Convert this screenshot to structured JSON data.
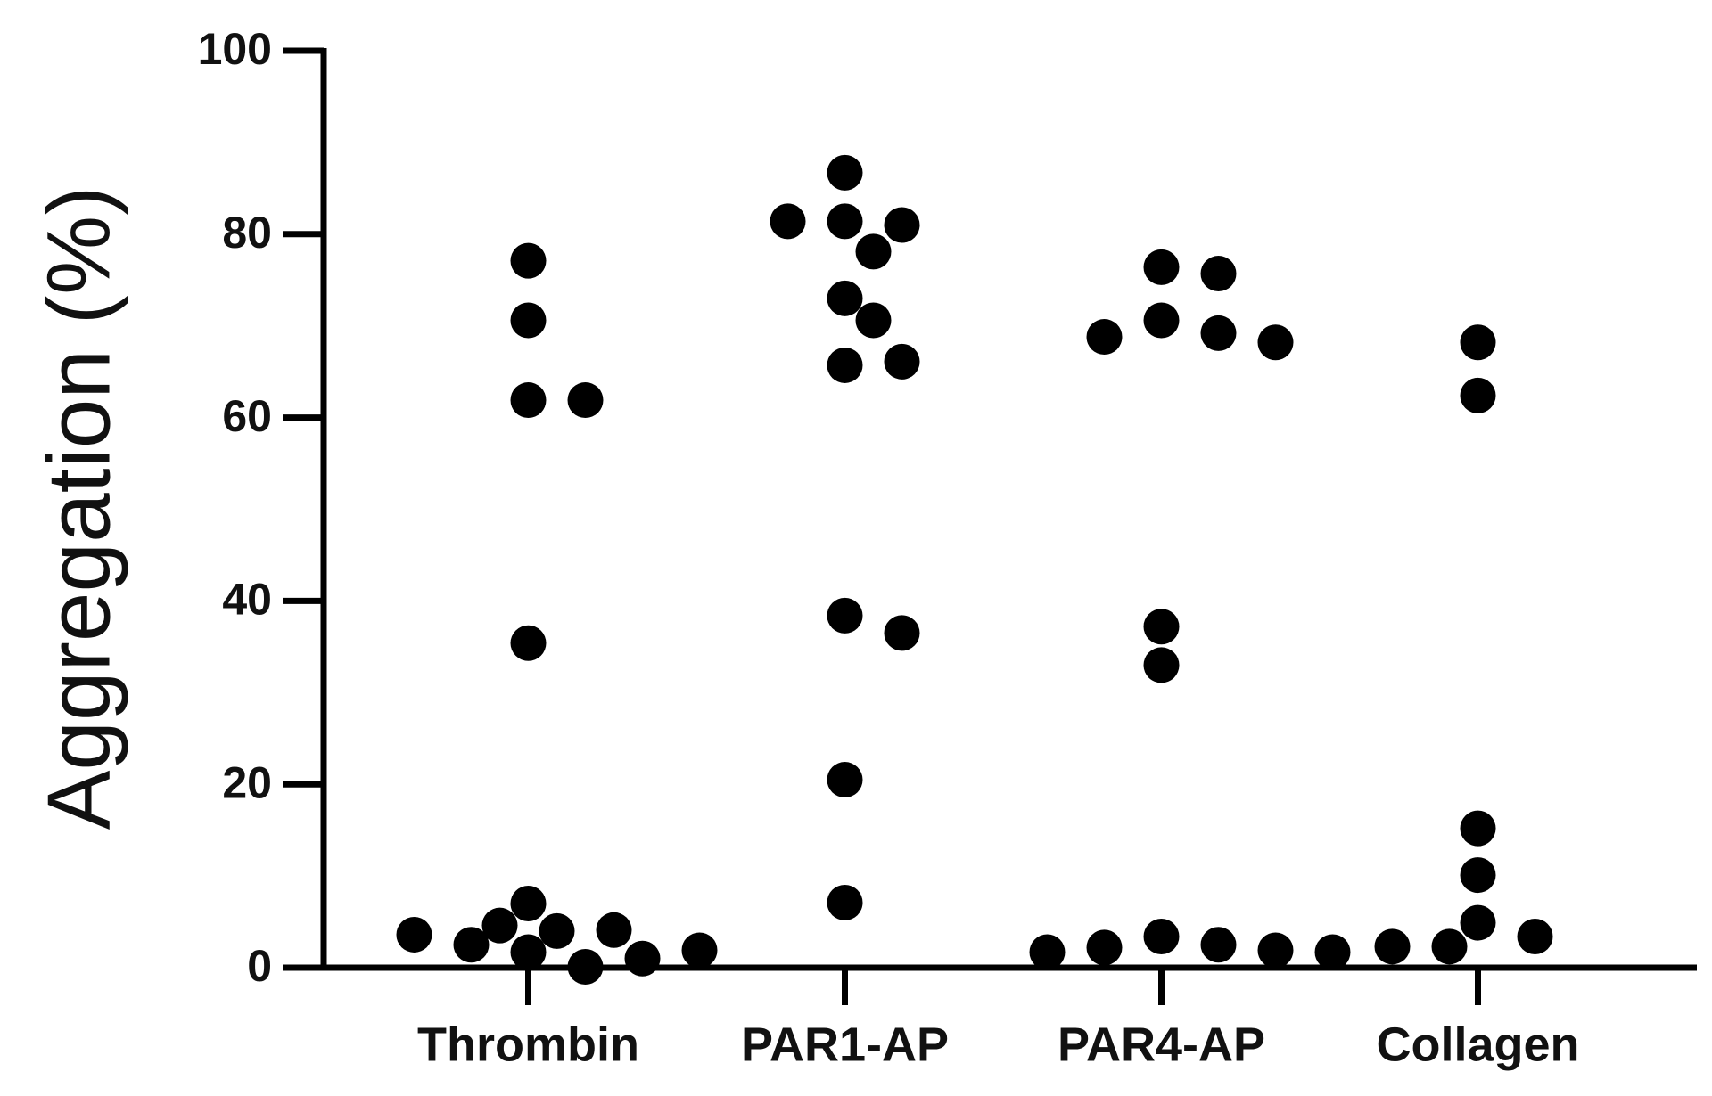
{
  "chart_data": {
    "type": "strip",
    "y_label": "Aggregation (%)",
    "categories": [
      "Thrombin",
      "PAR1-AP",
      "PAR4-AP",
      "Collagen"
    ],
    "values": [
      [
        77.1,
        70.6,
        61.9,
        61.9,
        35.4,
        7.0,
        4.0,
        1.7,
        2.5,
        4.1,
        4.6,
        3.6,
        0.1,
        1.0,
        1.9
      ],
      [
        86.7,
        81.4,
        81.0,
        81.4,
        78.1,
        73.0,
        70.6,
        65.7,
        66.1,
        38.4,
        36.5,
        20.5,
        7.1
      ],
      [
        76.4,
        75.7,
        70.6,
        69.2,
        68.8,
        68.2,
        37.2,
        33.0,
        3.4,
        2.5,
        2.2,
        1.9,
        1.7,
        1.7
      ],
      [
        68.2,
        62.4,
        15.2,
        10.1,
        4.9,
        3.4,
        2.3,
        2.3
      ]
    ],
    "color": "#000000",
    "ylim": [
      0,
      100
    ],
    "yticks": [
      0,
      20,
      40,
      60,
      80,
      100
    ]
  }
}
